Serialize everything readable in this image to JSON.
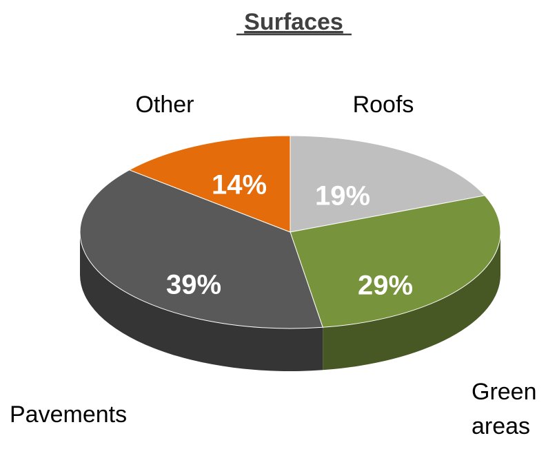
{
  "chart_data": {
    "type": "pie",
    "title": "Surfaces",
    "style": "3d",
    "categories": [
      "Roofs",
      "Green areas",
      "Pavements",
      "Other"
    ],
    "values": [
      19,
      29,
      39,
      14
    ],
    "value_labels": [
      "19%",
      "29%",
      "39%",
      "14%"
    ],
    "category_labels": [
      [
        "Roofs"
      ],
      [
        "Green",
        "areas"
      ],
      [
        "Pavements"
      ],
      [
        "Other"
      ]
    ],
    "colors": {
      "Roofs": "#bfbfbf",
      "Green areas": "#77933c",
      "Pavements": "#595959",
      "Other": "#e46c0a"
    },
    "legend": "none"
  }
}
